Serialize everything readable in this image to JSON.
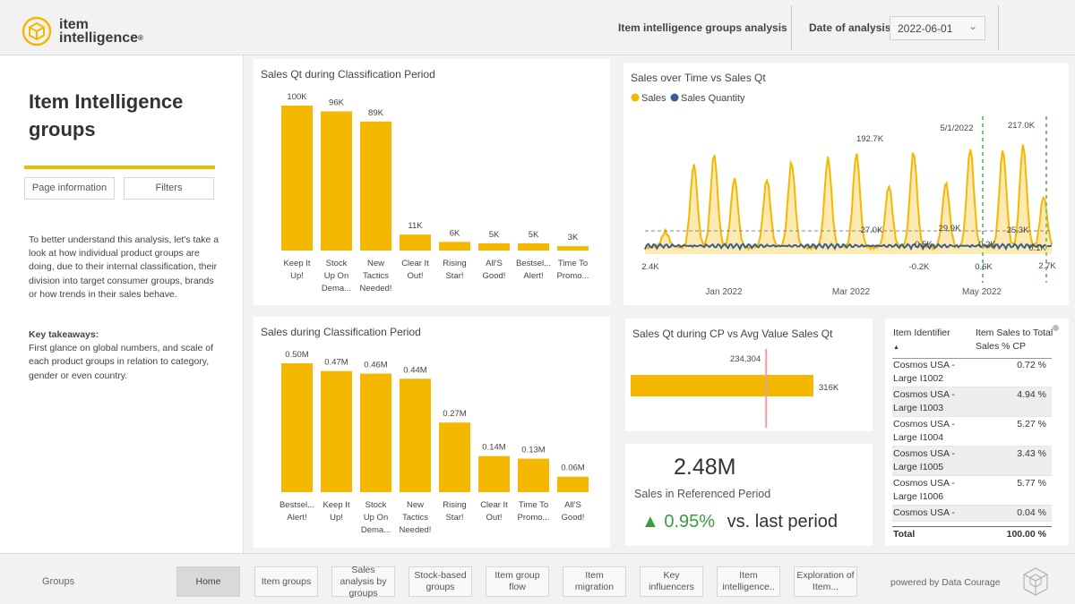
{
  "header": {
    "logo_line1": "item",
    "logo_line2": "intelligence",
    "logo_reg": "®",
    "title": "Item intelligence groups analysis",
    "date_label": "Date of analysis:",
    "date_value": "2022-06-01"
  },
  "left_panel": {
    "title": "Item Intelligence groups",
    "tab_page_info": "Page information",
    "tab_filters": "Filters",
    "description": "To better understand this analysis, let's take a look at how individual product groups are doing, due to their internal classification, their division into target consumer groups, brands or how trends in their sales behave.",
    "key_title": "Key takeaways:",
    "key_text": "First glance on global numbers, and scale of each product groups in relation to category, gender or even country."
  },
  "colors": {
    "accent": "#f5b800",
    "line_blue": "#3c5f8f",
    "up_green": "#3a9c3a",
    "ref_line": "#e8a0a0"
  },
  "charts": {
    "qt_cp": {
      "title": "Sales Qt during Classification Period",
      "chart_data": {
        "type": "bar",
        "categories": [
          [
            "Keep It",
            "Up!"
          ],
          [
            "Stock",
            "Up On",
            "Dema..."
          ],
          [
            "New",
            "Tactics",
            "Needed!"
          ],
          [
            "Clear It",
            "Out!"
          ],
          [
            "Rising",
            "Star!"
          ],
          [
            "All'S",
            "Good!"
          ],
          [
            "Bestsel...",
            "Alert!"
          ],
          [
            "Time To",
            "Promo..."
          ]
        ],
        "values": [
          100,
          96,
          89,
          11,
          6,
          5,
          5,
          3
        ],
        "labels": [
          "100K",
          "96K",
          "89K",
          "11K",
          "6K",
          "5K",
          "5K",
          "3K"
        ],
        "ylim": [
          0,
          100
        ]
      }
    },
    "sales_cp": {
      "title": "Sales during Classification Period",
      "chart_data": {
        "type": "bar",
        "categories": [
          [
            "Bestsel...",
            "Alert!"
          ],
          [
            "Keep It",
            "Up!"
          ],
          [
            "Stock",
            "Up On",
            "Dema..."
          ],
          [
            "New",
            "Tactics",
            "Needed!"
          ],
          [
            "Rising",
            "Star!"
          ],
          [
            "Clear It",
            "Out!"
          ],
          [
            "Time To",
            "Promo..."
          ],
          [
            "All'S",
            "Good!"
          ]
        ],
        "values": [
          0.5,
          0.47,
          0.46,
          0.44,
          0.27,
          0.14,
          0.13,
          0.06
        ],
        "labels": [
          "0.50M",
          "0.47M",
          "0.46M",
          "0.44M",
          "0.27M",
          "0.14M",
          "0.13M",
          "0.06M"
        ],
        "ylim": [
          0,
          0.5
        ]
      }
    },
    "time": {
      "title": "Sales over Time vs Sales Qt",
      "legend": [
        "Sales",
        "Sales Quantity"
      ],
      "x_ticks": [
        "Jan 2022",
        "Mar 2022",
        "May 2022"
      ],
      "ref_date": "5/1/2022",
      "chart_data": {
        "type": "area",
        "series": [
          {
            "name": "Sales",
            "peaks": [
              {
                "x": 0.05,
                "y": 30
              },
              {
                "x": 0.12,
                "y": 140
              },
              {
                "x": 0.17,
                "y": 155
              },
              {
                "x": 0.22,
                "y": 120
              },
              {
                "x": 0.3,
                "y": 145
              },
              {
                "x": 0.36,
                "y": 165
              },
              {
                "x": 0.45,
                "y": 150
              },
              {
                "x": 0.52,
                "y": 160
              },
              {
                "x": 0.6,
                "y": 125
              },
              {
                "x": 0.66,
                "y": 192.7
              },
              {
                "x": 0.74,
                "y": 110
              },
              {
                "x": 0.8,
                "y": 165
              },
              {
                "x": 0.88,
                "y": 180
              },
              {
                "x": 0.93,
                "y": 217.0
              },
              {
                "x": 0.98,
                "y": 100
              }
            ]
          },
          {
            "name": "Sales Quantity",
            "note": "low line along bottom"
          }
        ],
        "annotations": [
          "192.7K",
          "217.0K",
          "27.0K",
          "29.9K",
          "25.3K",
          "0.5K",
          "0.2K",
          "0.1K",
          "2.4K",
          "-0.2K",
          "0.6K",
          "2.7K"
        ],
        "ylim": [
          0,
          230
        ]
      }
    },
    "avg": {
      "title": "Sales Qt during CP vs Avg Value Sales Qt",
      "chart_data": {
        "type": "bar",
        "value": 316,
        "value_label": "316K",
        "ref": 234.304,
        "ref_label": "234,304",
        "xlim": [
          0,
          316
        ]
      }
    }
  },
  "kpi": {
    "value": "2.48M",
    "label": "Sales in Referenced Period",
    "change": "0.95%",
    "change_suffix": "vs. last period"
  },
  "table": {
    "col1": "Item Identifier",
    "col2": "Item Sales to Total Sales % CP",
    "rows": [
      {
        "id": "Cosmos USA - Large I1002",
        "pct": "0.72 %"
      },
      {
        "id": "Cosmos USA - Large I1003",
        "pct": "4.94 %"
      },
      {
        "id": "Cosmos USA - Large I1004",
        "pct": "5.27 %"
      },
      {
        "id": "Cosmos USA - Large I1005",
        "pct": "3.43 %"
      },
      {
        "id": "Cosmos USA - Large I1006",
        "pct": "5.77 %"
      },
      {
        "id": "Cosmos USA -",
        "pct": "0.04 %"
      }
    ],
    "total_label": "Total",
    "total_value": "100.00 %"
  },
  "footer": {
    "section": "Groups",
    "nav": [
      {
        "label": "Home",
        "active": true
      },
      {
        "label": "Item groups"
      },
      {
        "label": "Sales analysis by groups"
      },
      {
        "label": "Stock-based groups"
      },
      {
        "label": "Item group flow"
      },
      {
        "label": "Item migration"
      },
      {
        "label": "Key influencers"
      },
      {
        "label": "Item intelligence.."
      },
      {
        "label": "Exploration of Item..."
      }
    ],
    "powered": "powered by Data Courage"
  }
}
